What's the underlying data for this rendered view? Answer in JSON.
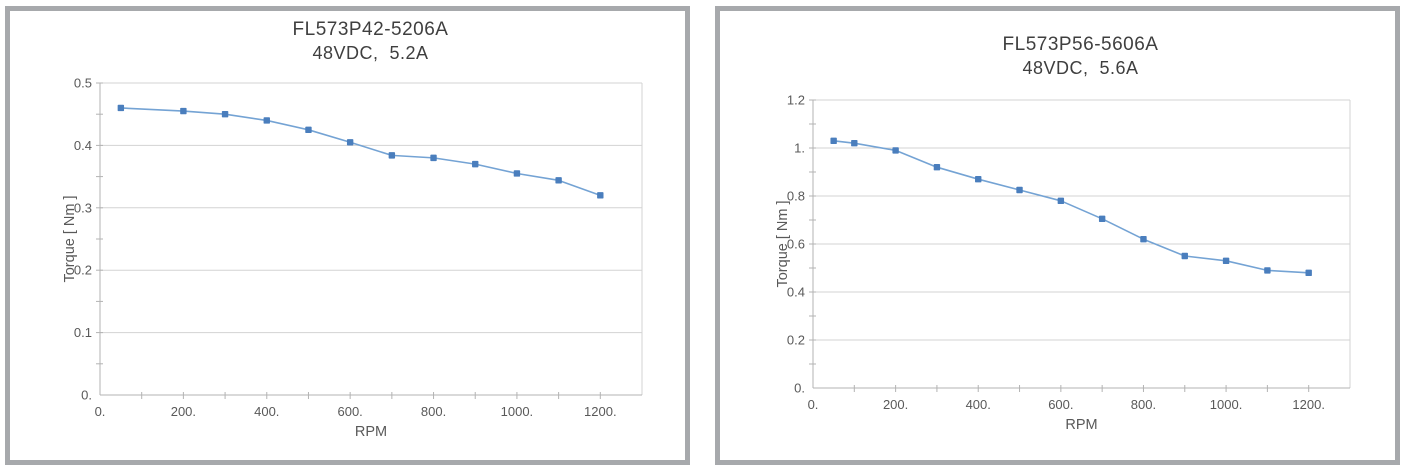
{
  "theme": {
    "panel_border_color": "#a7a9ac",
    "background_color": "#ffffff",
    "grid_color": "#d3d3d3",
    "axis_color": "#b3b3b3",
    "tick_color": "#b3b3b3",
    "text_color": "#595959",
    "title_color": "#3f3f3f",
    "line_color": "#74a3d4",
    "marker_color": "#4a7ebd"
  },
  "chart_data": [
    {
      "type": "line",
      "title": "FL573P42-5206A",
      "subtitle": "48VDC,  5.2A",
      "xlabel": "RPM",
      "ylabel": "Torque [ Nm ]",
      "x": [
        50,
        200,
        300,
        400,
        500,
        600,
        700,
        800,
        900,
        1000,
        1100,
        1200
      ],
      "y": [
        0.46,
        0.455,
        0.45,
        0.44,
        0.425,
        0.405,
        0.384,
        0.38,
        0.37,
        0.355,
        0.344,
        0.32
      ],
      "xlim": [
        0,
        1300
      ],
      "ylim": [
        0,
        0.5
      ],
      "x_tick_major": 200,
      "x_tick_minor": 100,
      "y_tick_major": 0.1,
      "y_tick_minor": 0.05,
      "grid": "horizontal-major",
      "legend": "none",
      "marker": "square"
    },
    {
      "type": "line",
      "title": "FL573P56-5606A",
      "subtitle": "48VDC,  5.6A",
      "xlabel": "RPM",
      "ylabel": "Torque [ Nm ]",
      "x": [
        50,
        100,
        200,
        300,
        400,
        500,
        600,
        700,
        800,
        900,
        1000,
        1100,
        1200
      ],
      "y": [
        1.03,
        1.02,
        0.99,
        0.92,
        0.87,
        0.825,
        0.78,
        0.705,
        0.62,
        0.55,
        0.53,
        0.49,
        0.48
      ],
      "xlim": [
        0,
        1300
      ],
      "ylim": [
        0,
        1.2
      ],
      "x_tick_major": 200,
      "x_tick_minor": 100,
      "y_tick_major": 0.2,
      "y_tick_minor": 0.1,
      "grid": "horizontal-major",
      "legend": "none",
      "marker": "square"
    }
  ]
}
